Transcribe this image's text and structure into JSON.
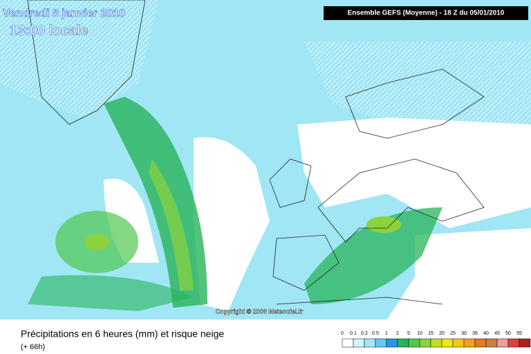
{
  "header": {
    "date": "Vendredi 8 janvier 2010",
    "time": "13:00 locale",
    "run": "Ensemble GEFS (Moyenne)  - 18 Z du 05/01/2010"
  },
  "copyright": "Copyright © 2008 Meteociel.fr",
  "footer": {
    "title": "Précipitations en 6 heures (mm) et risque neige",
    "lead": "(+ 66h)"
  },
  "legend": [
    {
      "label": 0,
      "color": "#ffffff"
    },
    {
      "label": 0.1,
      "color": "#d2f5fa"
    },
    {
      "label": 0.2,
      "color": "#a0e6f5"
    },
    {
      "label": 0.5,
      "color": "#64c8f5"
    },
    {
      "label": 1,
      "color": "#2896e6"
    },
    {
      "label": 2,
      "color": "#28b45a"
    },
    {
      "label": 5,
      "color": "#50c850"
    },
    {
      "label": 10,
      "color": "#8cd23c"
    },
    {
      "label": 15,
      "color": "#c8dc28"
    },
    {
      "label": 20,
      "color": "#f0e614"
    },
    {
      "label": 25,
      "color": "#f5c814"
    },
    {
      "label": 30,
      "color": "#f5a014"
    },
    {
      "label": 35,
      "color": "#e6781e"
    },
    {
      "label": 40,
      "color": "#c8823c"
    },
    {
      "label": 45,
      "color": "#e6a0a0"
    },
    {
      "label": 50,
      "color": "#e63c3c"
    },
    {
      "label": 55,
      "color": "#b41e1e"
    }
  ]
}
